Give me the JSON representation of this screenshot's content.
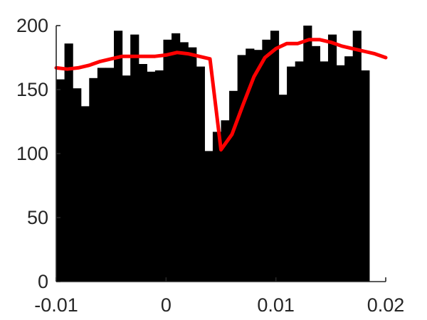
{
  "chart_data": {
    "type": "bar",
    "title": "",
    "xlabel": "",
    "ylabel": "",
    "xlim": [
      -0.01,
      0.02
    ],
    "ylim": [
      0,
      200
    ],
    "xticks": [
      -0.01,
      0,
      0.01,
      0.02
    ],
    "xtick_labels": [
      "-0.01",
      "0",
      "0.01",
      "0.02"
    ],
    "yticks": [
      0,
      50,
      100,
      150,
      200
    ],
    "ytick_labels": [
      "0",
      "50",
      "100",
      "150",
      "200"
    ],
    "grid": false,
    "bin_width": 0.00075,
    "bins_start": -0.01,
    "series": [
      {
        "type": "histogram",
        "color": "#000000",
        "values": [
          158,
          186,
          151,
          137,
          159,
          167,
          167,
          196,
          161,
          193,
          170,
          164,
          165,
          189,
          194,
          187,
          183,
          168,
          102,
          117,
          126,
          149,
          177,
          182,
          181,
          189,
          196,
          146,
          168,
          172,
          200,
          184,
          172,
          193,
          169,
          176,
          196,
          165
        ]
      },
      {
        "type": "line",
        "color": "#ff0000",
        "x": [
          -0.01,
          -0.009,
          -0.008,
          -0.007,
          -0.006,
          -0.005,
          -0.004,
          -0.003,
          -0.002,
          -0.001,
          0,
          0.001,
          0.002,
          0.003,
          0.004,
          0.005,
          0.006,
          0.007,
          0.008,
          0.009,
          0.01,
          0.011,
          0.012,
          0.013,
          0.014,
          0.015,
          0.016,
          0.017,
          0.018,
          0.019,
          0.02
        ],
        "y": [
          167,
          166,
          167,
          169,
          172,
          174,
          176,
          176,
          176,
          176,
          177,
          179,
          178,
          176,
          174,
          103,
          115,
          138,
          160,
          175,
          182,
          186,
          186,
          189,
          189,
          187,
          184,
          182,
          180,
          178,
          175
        ]
      }
    ]
  }
}
